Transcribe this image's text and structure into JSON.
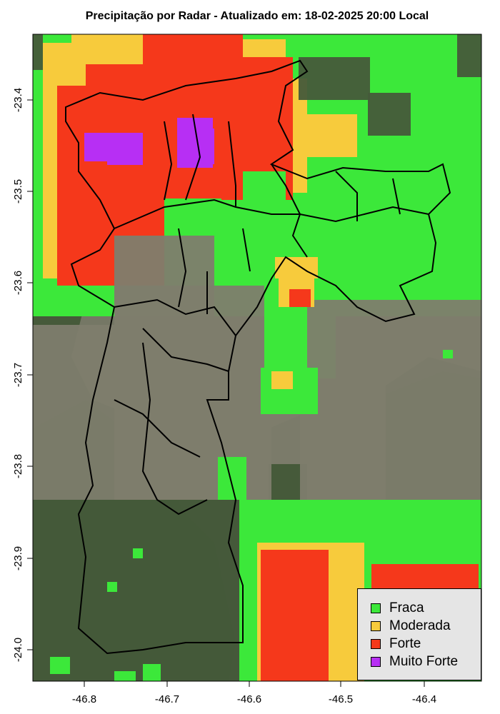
{
  "title": "Precipitação por Radar - Atualizado em: 18-02-2025 20:00 Local",
  "x_ticks": [
    "-46.8",
    "-46.7",
    "-46.6",
    "-46.5",
    "-46.4"
  ],
  "y_ticks": [
    "-23.4",
    "-23.5",
    "-23.6",
    "-23.7",
    "-23.8",
    "-23.9",
    "-24.0"
  ],
  "legend": [
    {
      "label": "Fraca",
      "color": "#3ce83a"
    },
    {
      "label": "Moderada",
      "color": "#f7cb3c"
    },
    {
      "label": "Forte",
      "color": "#f5381b"
    },
    {
      "label": "Muito Forte",
      "color": "#b72ff4"
    }
  ],
  "colors": {
    "background_satellite": "#465a3a",
    "urban_area": "#7e7d6d",
    "boundary": "#000000"
  }
}
